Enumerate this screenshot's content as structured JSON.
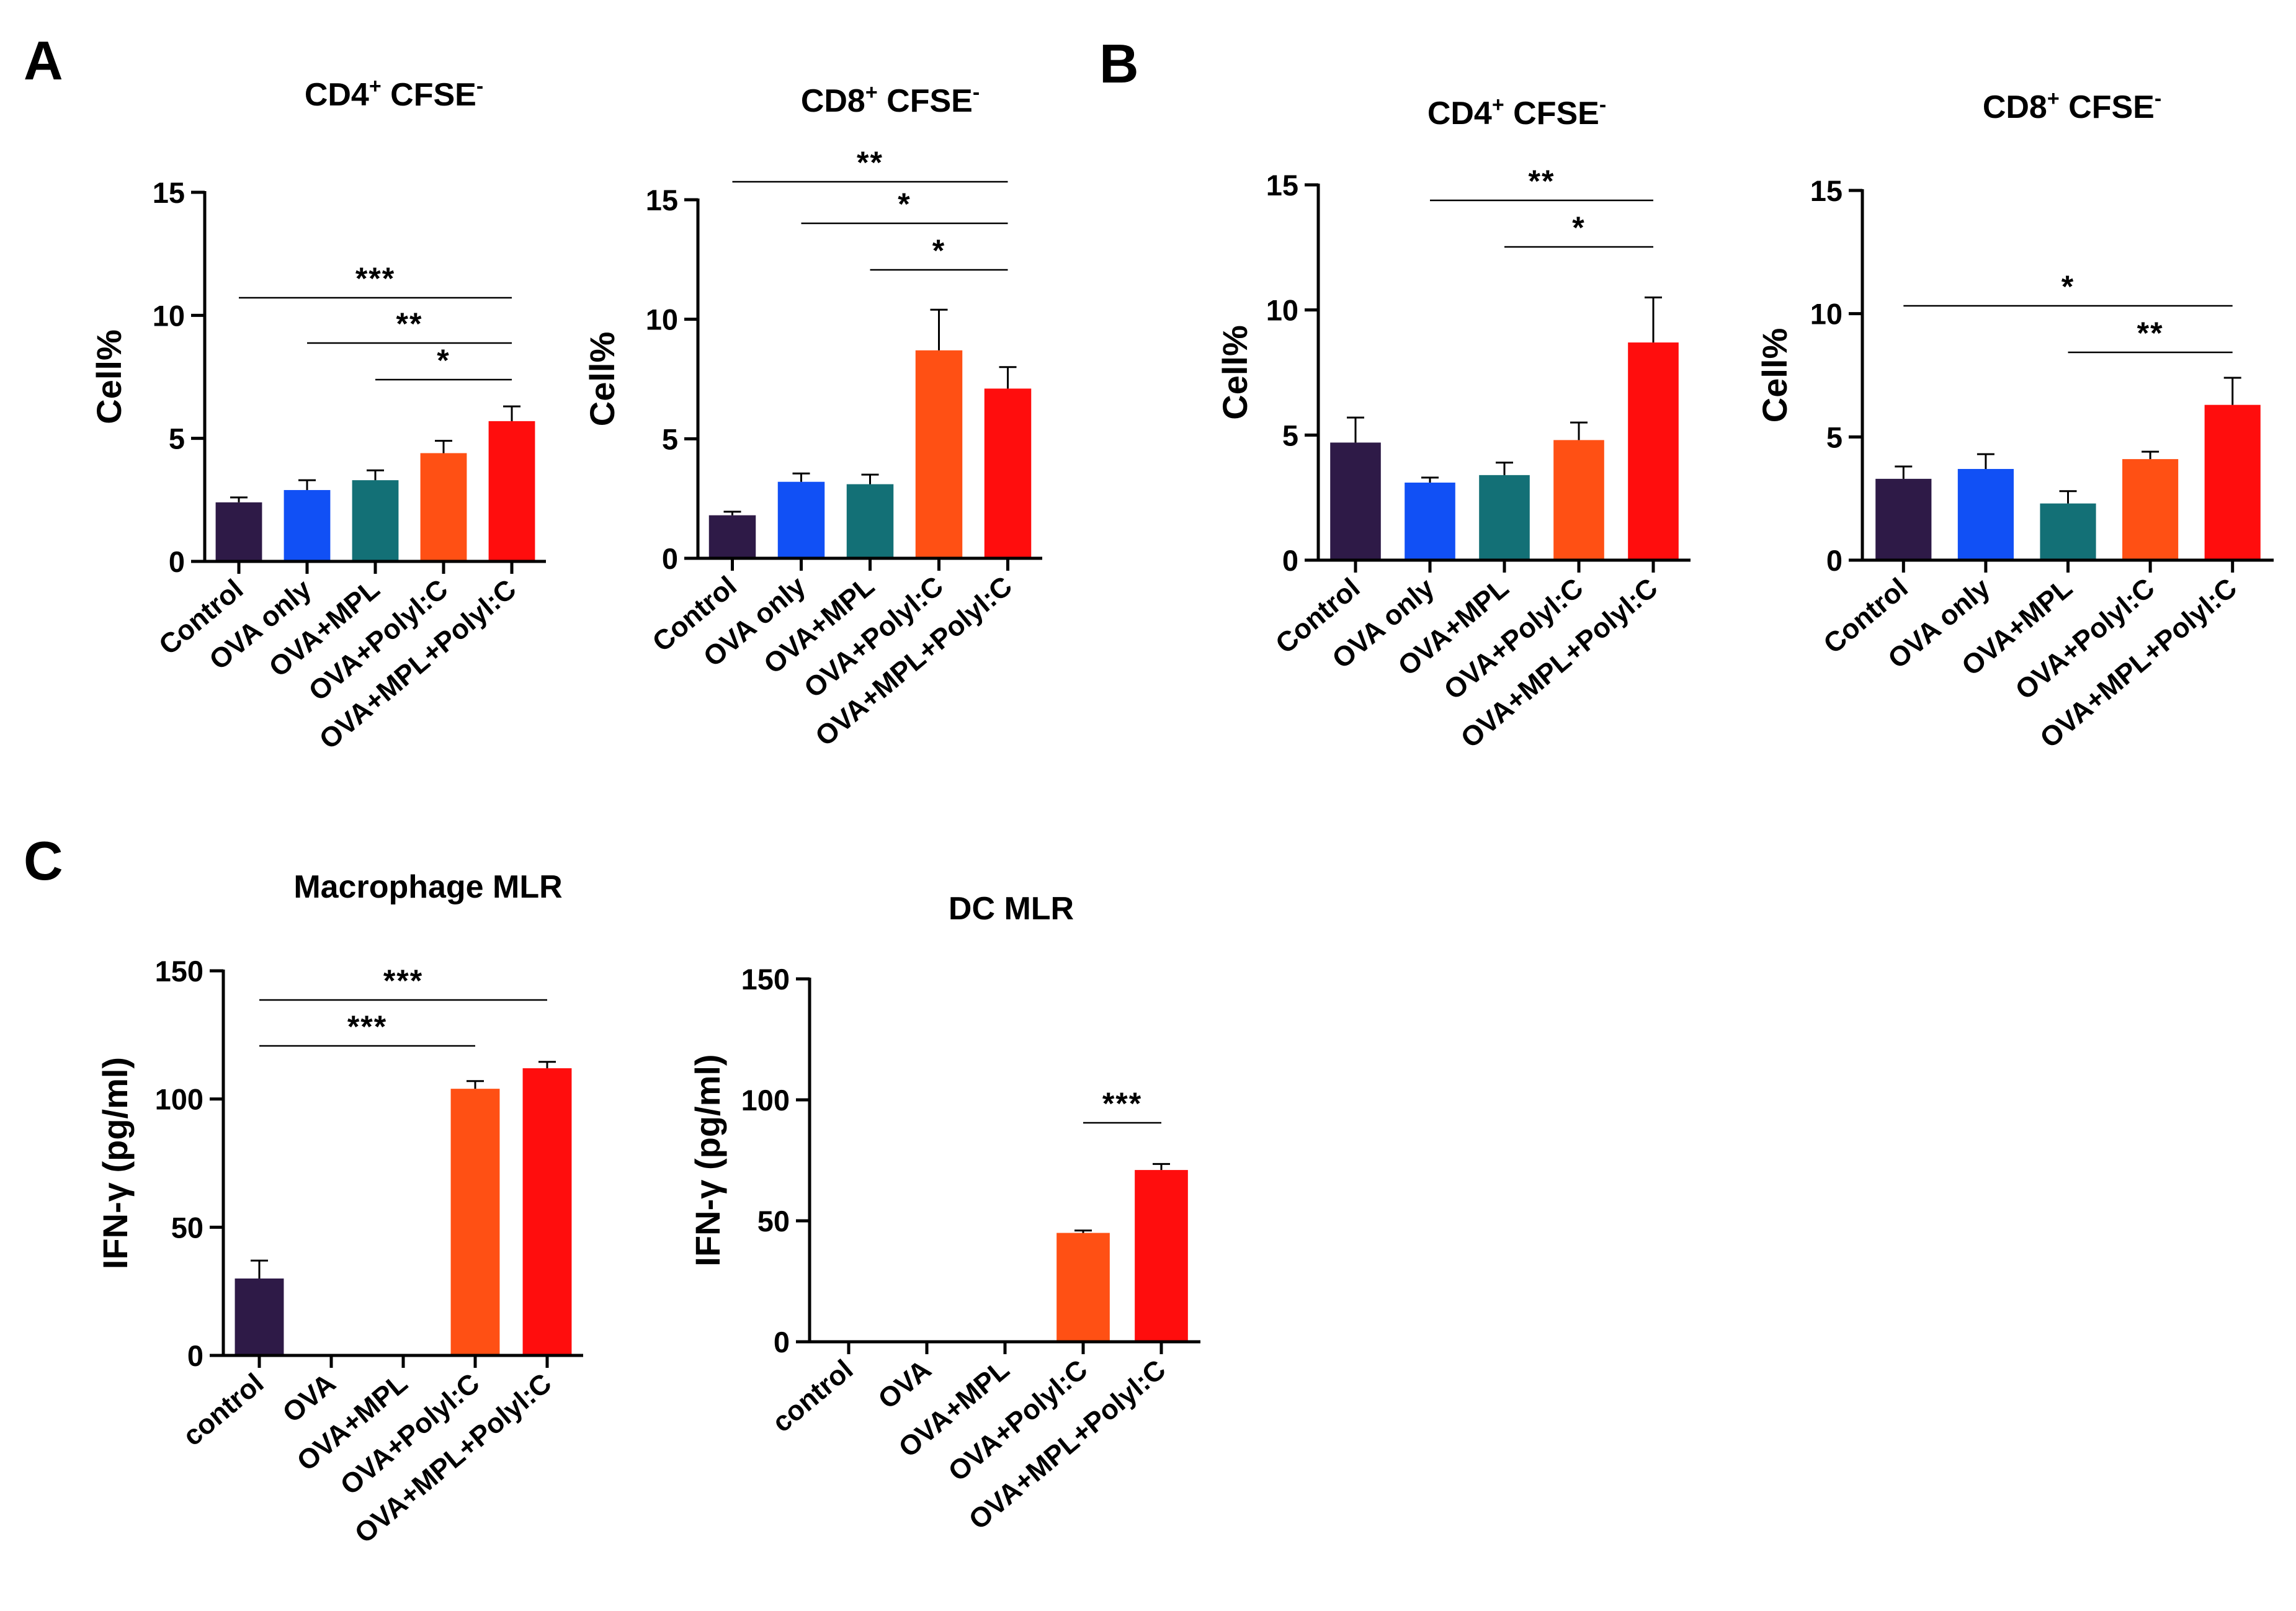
{
  "figure": {
    "panel_letters": [
      "A",
      "B",
      "C"
    ],
    "colors": {
      "Control": "#2E1A47",
      "OVA only": "#1150F5",
      "OVA+MPL": "#137076",
      "OVA+PolyI:C": "#FF5014",
      "OVA+MPL+PolyI:C": "#FF0D0D"
    }
  },
  "chart_data": [
    {
      "panel": "A",
      "type": "bar",
      "title": "CD4",
      "title_sup1": "+",
      "title_mid": " CFSE",
      "title_sup2": "-",
      "ylabel": "Cell%",
      "xlabel": "",
      "ylim": [
        0,
        15
      ],
      "yticks": [
        "0",
        "5",
        "10",
        "15"
      ],
      "categories": [
        "Control",
        "OVA only",
        "OVA+MPL",
        "OVA+Polyl:C",
        "OVA+MPL+Polyl:C"
      ],
      "values": [
        2.4,
        2.9,
        3.3,
        4.4,
        5.7
      ],
      "errors": [
        0.2,
        0.4,
        0.4,
        0.5,
        0.6
      ],
      "colors": [
        "#2E1A47",
        "#1150F5",
        "#137076",
        "#FF5014",
        "#FF0D0D"
      ],
      "significance": [
        {
          "from": 0,
          "to": 4,
          "label": "***"
        },
        {
          "from": 1,
          "to": 4,
          "label": "**"
        },
        {
          "from": 2,
          "to": 4,
          "label": "*"
        }
      ]
    },
    {
      "panel": "A",
      "type": "bar",
      "title": "CD8",
      "title_sup1": "+",
      "title_mid": " CFSE",
      "title_sup2": "-",
      "ylabel": "Cell%",
      "xlabel": "",
      "ylim": [
        0,
        15
      ],
      "yticks": [
        "0",
        "5",
        "10",
        "15"
      ],
      "categories": [
        "Control",
        "OVA only",
        "OVA+MPL",
        "OVA+Polyl:C",
        "OVA+MPL+Polyl:C"
      ],
      "values": [
        1.8,
        3.2,
        3.1,
        8.7,
        7.1
      ],
      "errors": [
        0.15,
        0.35,
        0.4,
        1.7,
        0.9
      ],
      "colors": [
        "#2E1A47",
        "#1150F5",
        "#137076",
        "#FF5014",
        "#FF0D0D"
      ],
      "significance": [
        {
          "from": 0,
          "to": 4,
          "label": "**"
        },
        {
          "from": 1,
          "to": 4,
          "label": "*"
        },
        {
          "from": 2,
          "to": 4,
          "label": "*"
        }
      ]
    },
    {
      "panel": "B",
      "type": "bar",
      "title": "CD4",
      "title_sup1": "+",
      "title_mid": " CFSE",
      "title_sup2": "-",
      "ylabel": "Cell%",
      "xlabel": "",
      "ylim": [
        0,
        15
      ],
      "yticks": [
        "0",
        "5",
        "10",
        "15"
      ],
      "categories": [
        "Control",
        "OVA only",
        "OVA+MPL",
        "OVA+Polyl:C",
        "OVA+MPL+Polyl:C"
      ],
      "values": [
        4.7,
        3.1,
        3.4,
        4.8,
        8.7
      ],
      "errors": [
        1.0,
        0.2,
        0.5,
        0.7,
        1.8
      ],
      "colors": [
        "#2E1A47",
        "#1150F5",
        "#137076",
        "#FF5014",
        "#FF0D0D"
      ],
      "significance": [
        {
          "from": 1,
          "to": 4,
          "label": "**"
        },
        {
          "from": 2,
          "to": 4,
          "label": "*"
        }
      ]
    },
    {
      "panel": "B",
      "type": "bar",
      "title": "CD8",
      "title_sup1": "+",
      "title_mid": " CFSE",
      "title_sup2": "-",
      "ylabel": "Cell%",
      "xlabel": "",
      "ylim": [
        0,
        15
      ],
      "yticks": [
        "0",
        "5",
        "10",
        "15"
      ],
      "categories": [
        "Control",
        "OVA only",
        "OVA+MPL",
        "OVA+Polyl:C",
        "OVA+MPL+Polyl:C"
      ],
      "values": [
        3.3,
        3.7,
        2.3,
        4.1,
        6.3
      ],
      "errors": [
        0.5,
        0.6,
        0.5,
        0.3,
        1.1
      ],
      "colors": [
        "#2E1A47",
        "#1150F5",
        "#137076",
        "#FF5014",
        "#FF0D0D"
      ],
      "significance": [
        {
          "from": 0,
          "to": 4,
          "label": "*"
        },
        {
          "from": 2,
          "to": 4,
          "label": "**"
        }
      ]
    },
    {
      "panel": "C",
      "type": "bar",
      "title": "Macrophage MLR",
      "ylabel": "IFN-γ (pg/ml)",
      "xlabel": "",
      "ylim": [
        0,
        150
      ],
      "yticks": [
        "0",
        "50",
        "100",
        "150"
      ],
      "categories": [
        "control",
        "OVA",
        "OVA+MPL",
        "OVA+Polyl:C",
        "OVA+MPL+Polyl:C"
      ],
      "values": [
        30,
        0,
        0,
        104,
        112
      ],
      "errors": [
        7,
        0,
        0,
        3,
        2.5
      ],
      "colors": [
        "#2E1A47",
        "#1150F5",
        "#137076",
        "#FF5014",
        "#FF0D0D"
      ],
      "significance": [
        {
          "from": 0,
          "to": 4,
          "label": "***"
        },
        {
          "from": 0,
          "to": 3,
          "label": "***"
        }
      ]
    },
    {
      "panel": "C",
      "type": "bar",
      "title": "DC MLR",
      "ylabel": "IFN-γ (pg/ml)",
      "xlabel": "",
      "ylim": [
        0,
        150
      ],
      "yticks": [
        "0",
        "50",
        "100",
        "150"
      ],
      "categories": [
        "control",
        "OVA",
        "OVA+MPL",
        "OVA+Polyl:C",
        "OVA+MPL+Polyl:C"
      ],
      "values": [
        0,
        0,
        0,
        45,
        71
      ],
      "errors": [
        0,
        0,
        0,
        1,
        2.5
      ],
      "colors": [
        "#2E1A47",
        "#1150F5",
        "#137076",
        "#FF5014",
        "#FF0D0D"
      ],
      "significance": [
        {
          "from": 3,
          "to": 4,
          "label": "***"
        }
      ]
    }
  ]
}
